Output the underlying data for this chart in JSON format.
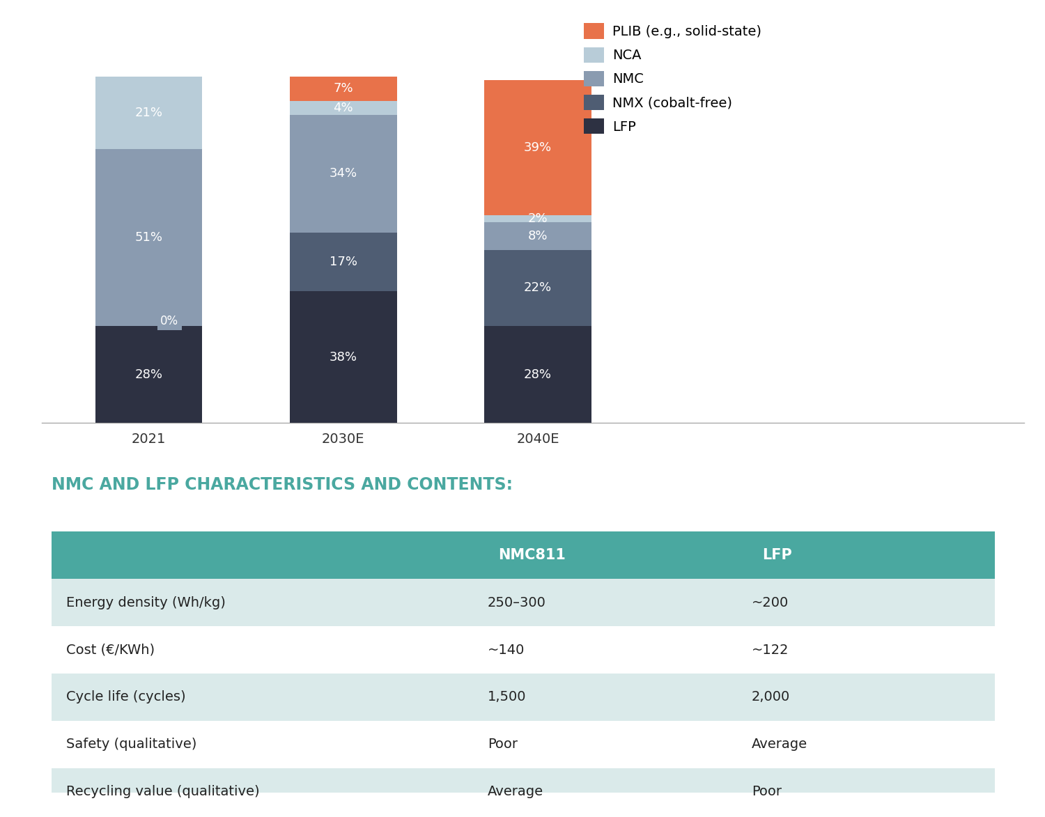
{
  "years": [
    "2021",
    "2030E",
    "2040E"
  ],
  "categories": [
    "LFP",
    "NMX (cobalt-free)",
    "NMC",
    "NCA",
    "PLIB (e.g., solid-state)"
  ],
  "colors": [
    "#2d3142",
    "#4f5d73",
    "#8a9bb0",
    "#b8ccd8",
    "#e8724a"
  ],
  "values": {
    "2021": [
      28,
      0,
      51,
      21,
      0
    ],
    "2030E": [
      38,
      17,
      34,
      4,
      7
    ],
    "2040E": [
      28,
      22,
      8,
      2,
      39
    ]
  },
  "bar_width": 0.55,
  "x_positions": [
    0,
    1,
    2
  ],
  "legend_labels": [
    "PLIB (e.g., solid-state)",
    "NCA",
    "NMC",
    "NMX (cobalt-free)",
    "LFP"
  ],
  "legend_colors": [
    "#e8724a",
    "#b8ccd8",
    "#8a9bb0",
    "#4f5d73",
    "#2d3142"
  ],
  "table_title": "NMC AND LFP CHARACTERISTICS AND CONTENTS:",
  "table_title_color": "#4aa8a0",
  "table_header": [
    "",
    "NMC811",
    "LFP"
  ],
  "table_header_bg": "#4aa8a0",
  "table_header_color": "#ffffff",
  "table_rows": [
    [
      "Energy density (Wh/kg)",
      "250–300",
      "~200"
    ],
    [
      "Cost (€/KWh)",
      "~140",
      "~122"
    ],
    [
      "Cycle life (cycles)",
      "1,500",
      "2,000"
    ],
    [
      "Safety (qualitative)",
      "Poor",
      "Average"
    ],
    [
      "Recycling value (qualitative)",
      "Average",
      "Poor"
    ]
  ],
  "table_row_colors": [
    "#daeaea",
    "#ffffff",
    "#daeaea",
    "#ffffff",
    "#daeaea"
  ],
  "background_color": "#ffffff",
  "label_fontsize": 13,
  "tick_fontsize": 14,
  "zero_label_bg": "#8a9bb0"
}
